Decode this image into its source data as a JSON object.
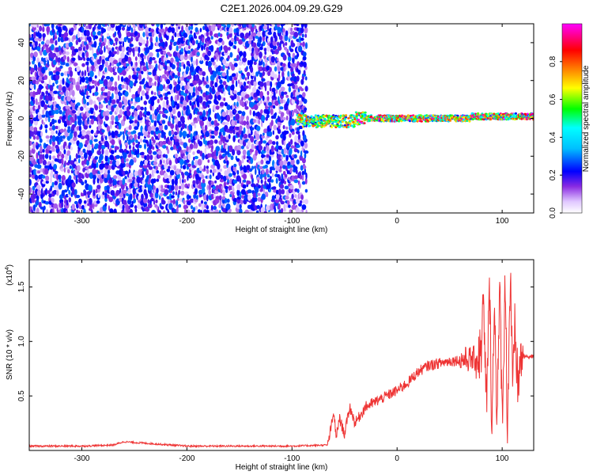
{
  "title": "C2E1.2026.004.09.29.G29",
  "chart_data": [
    {
      "type": "heatmap",
      "xlabel": "Height of straight line (km)",
      "ylabel": "Frequency (Hz)",
      "xlim": [
        -350,
        130
      ],
      "ylim": [
        -50,
        50
      ],
      "x_ticks": [
        -300,
        -200,
        -100,
        0,
        100
      ],
      "y_ticks": [
        -40,
        -20,
        0,
        20,
        40
      ],
      "colorbar": {
        "label": "Normalized spectral amplitude",
        "range": [
          0,
          1
        ],
        "ticks": [
          0.0,
          0.2,
          0.4,
          0.6,
          0.8
        ],
        "tick_labels": [
          "0.0",
          "0.2",
          "0.4",
          "0.6",
          "0.8"
        ],
        "colors": [
          "#ffffff",
          "#e0c8ff",
          "#8a2be2",
          "#0000ff",
          "#00ffff",
          "#00ff00",
          "#ffff00",
          "#ff8000",
          "#ff0000",
          "#ff00ff"
        ]
      },
      "regions": [
        {
          "description": "noise",
          "x_range": [
            -350,
            -88
          ],
          "freq_range": [
            -50,
            50
          ],
          "amplitude_range": [
            0.05,
            0.3
          ]
        },
        {
          "description": "signal",
          "x_range": [
            -95,
            130
          ],
          "freq": 0,
          "amplitude_range": [
            0.4,
            1.0
          ]
        }
      ]
    },
    {
      "type": "line",
      "xlabel": "Height of straight line (km)",
      "ylabel": "SNR (10 * v/v)",
      "y_scale_label": "(x10",
      "y_scale_exp": "4",
      "xlim": [
        -350,
        130
      ],
      "ylim": [
        0,
        1.75
      ],
      "x_ticks": [
        -300,
        -200,
        -100,
        0,
        100
      ],
      "y_ticks": [
        0.5,
        1.0,
        1.5
      ],
      "y_tick_labels": [
        "0.5",
        "1.0",
        "1.5"
      ],
      "series": [
        {
          "color": "#ee3333",
          "x": [
            -350,
            -300,
            -270,
            -260,
            -200,
            -100,
            -66,
            -60,
            -58,
            -55,
            -50,
            -45,
            -40,
            -30,
            -20,
            -10,
            0,
            10,
            20,
            30,
            40,
            50,
            60,
            70,
            75,
            80,
            82,
            85,
            88,
            90,
            93,
            95,
            98,
            100,
            103,
            105,
            108,
            110,
            112,
            115,
            118,
            120,
            125,
            130
          ],
          "y": [
            0.04,
            0.04,
            0.05,
            0.08,
            0.04,
            0.04,
            0.05,
            0.35,
            0.1,
            0.3,
            0.15,
            0.4,
            0.25,
            0.4,
            0.45,
            0.5,
            0.55,
            0.62,
            0.72,
            0.78,
            0.8,
            0.82,
            0.83,
            0.84,
            0.84,
            0.9,
            1.35,
            0.4,
            1.5,
            0.3,
            1.3,
            0.35,
            1.45,
            0.25,
            1.6,
            0.2,
            1.7,
            0.45,
            1.1,
            0.6,
            0.85,
            0.86,
            0.86,
            0.86
          ]
        }
      ]
    }
  ]
}
